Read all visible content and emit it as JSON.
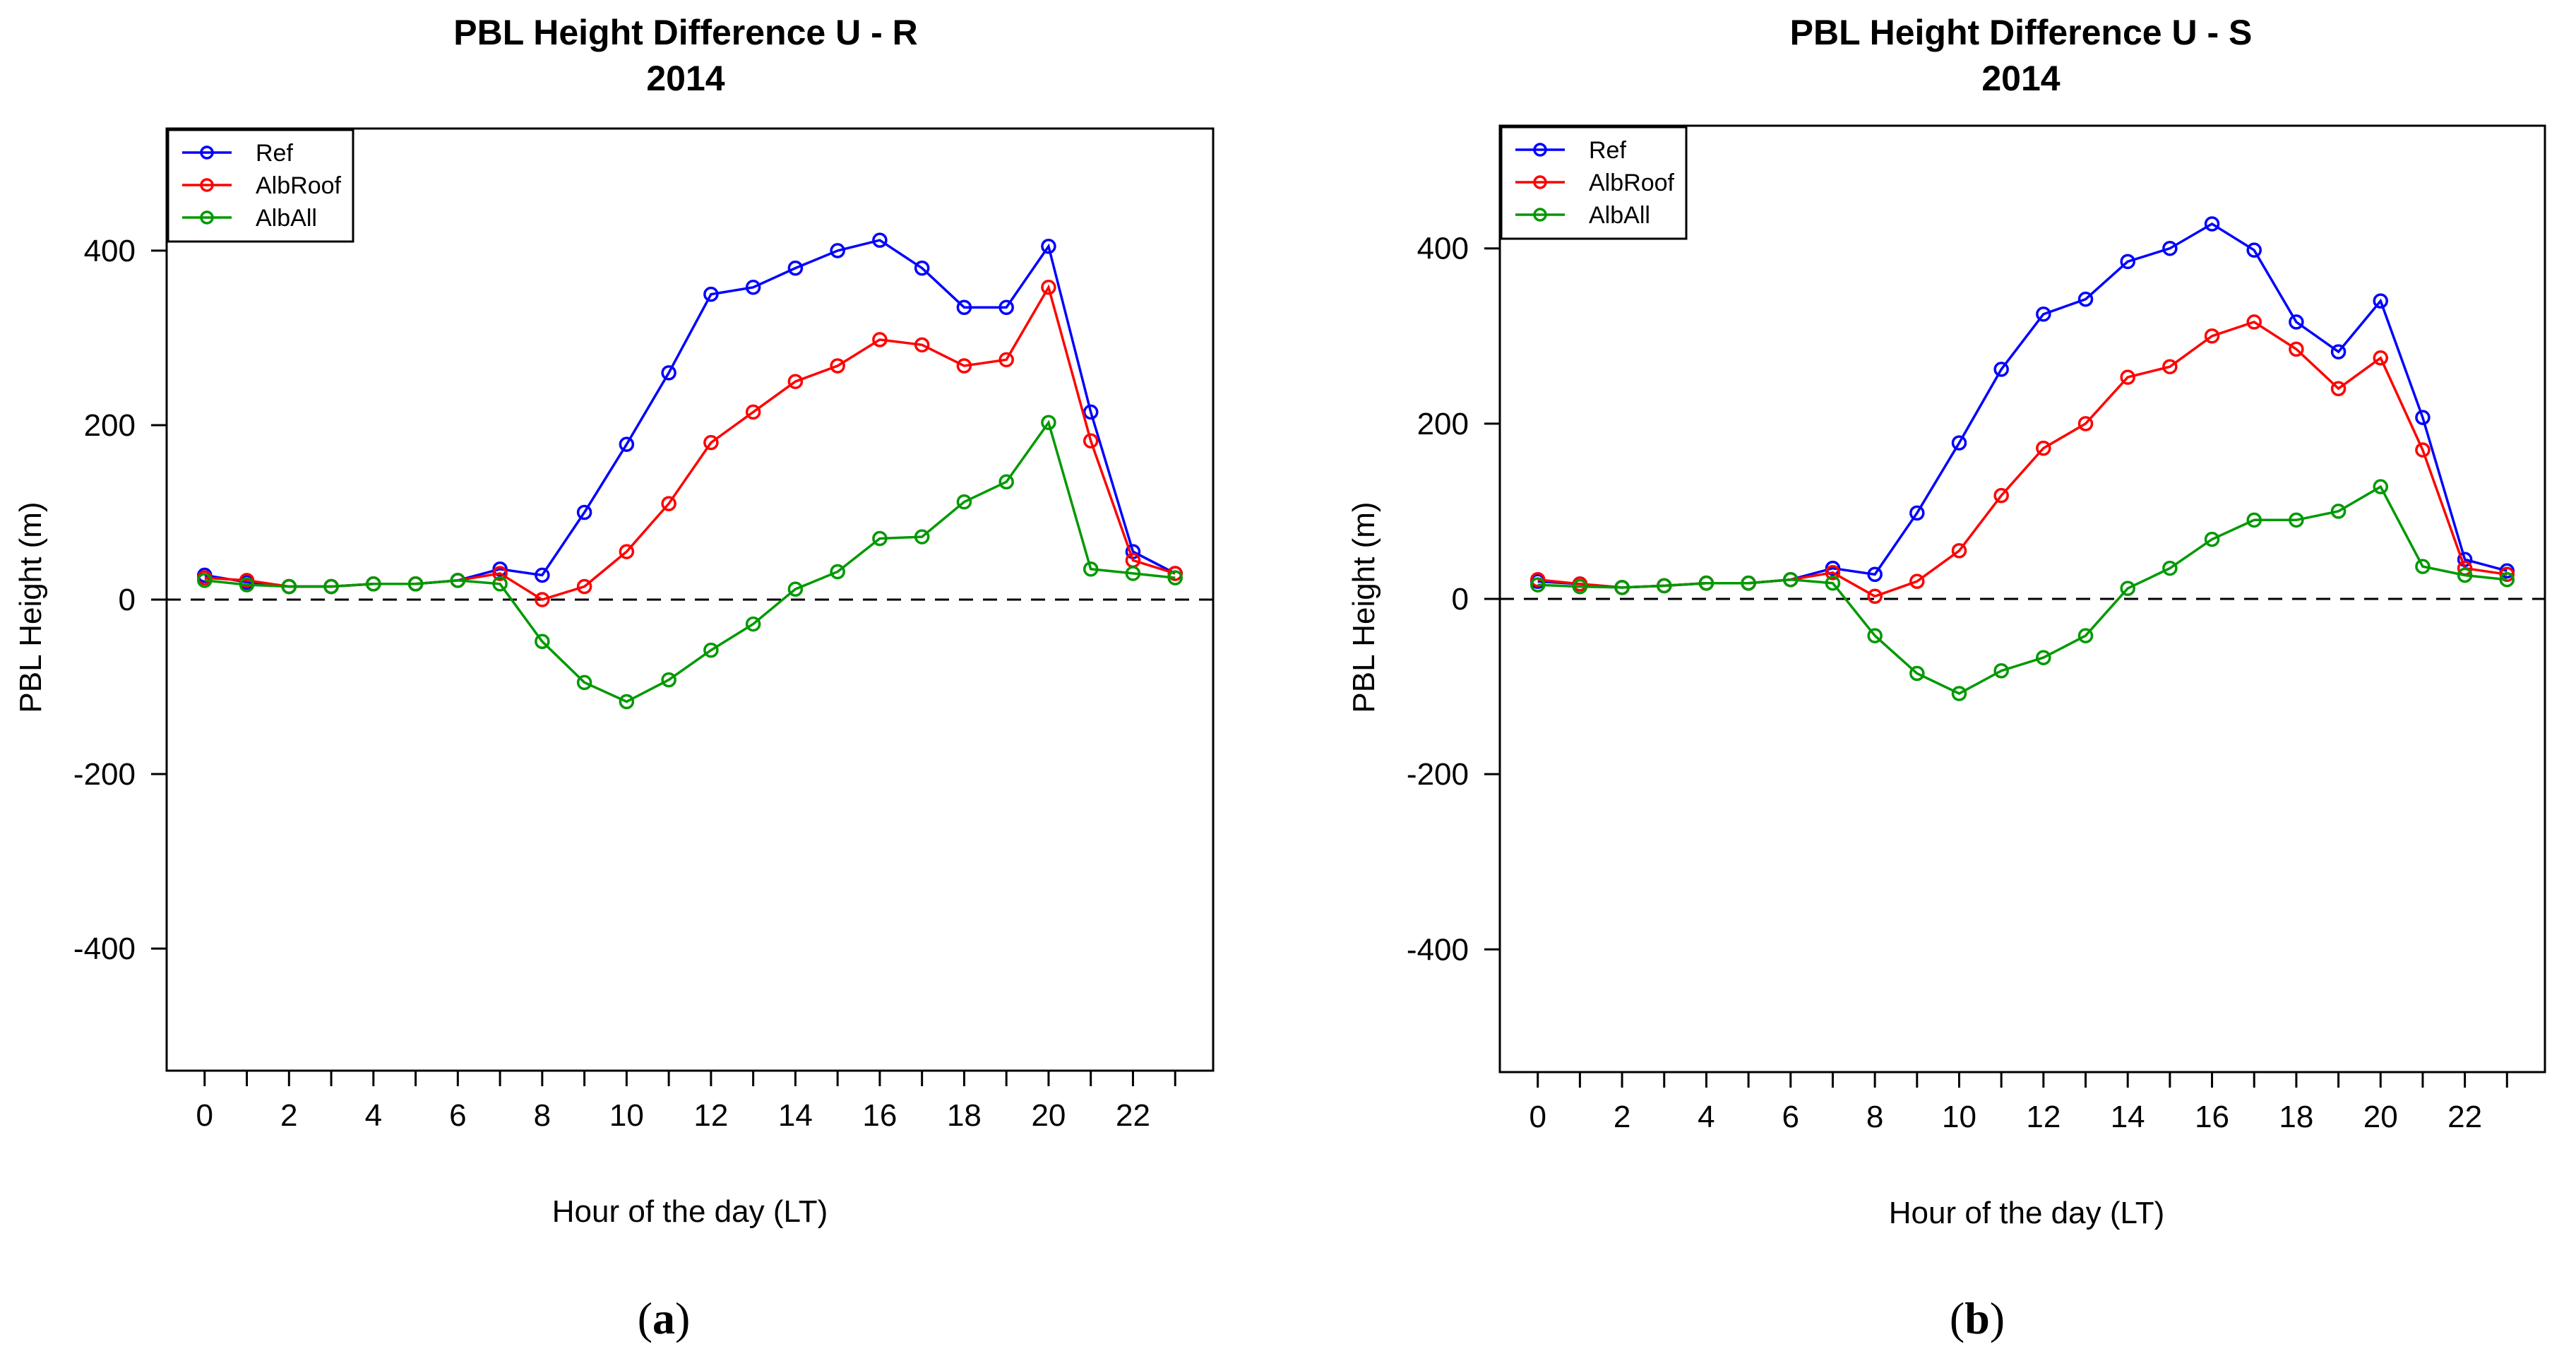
{
  "chart_data": [
    {
      "type": "line",
      "title": "PBL Height Difference U - R",
      "subtitle": "2014",
      "xlabel": "Hour of the day (LT)",
      "ylabel": "PBL Height (m)",
      "caption_paren_open": "(",
      "caption_letter": "a",
      "caption_paren_close": ")",
      "xlim": [
        -0.9,
        23.9
      ],
      "ylim": [
        -540,
        540
      ],
      "xticks": [
        0,
        1,
        2,
        3,
        4,
        5,
        6,
        7,
        8,
        9,
        10,
        11,
        12,
        13,
        14,
        15,
        16,
        17,
        18,
        19,
        20,
        21,
        22,
        23
      ],
      "xtick_labels": [
        "0",
        "2",
        "4",
        "6",
        "8",
        "10",
        "12",
        "14",
        "16",
        "18",
        "20",
        "22"
      ],
      "xtick_label_values": [
        0,
        2,
        4,
        6,
        8,
        10,
        12,
        14,
        16,
        18,
        20,
        22
      ],
      "yticks": [
        -400,
        -200,
        0,
        200,
        400
      ],
      "ytick_labels": [
        "-400",
        "-200",
        "0",
        "200",
        "400"
      ],
      "reference_line": 0,
      "legend_position": "top-left",
      "x": [
        0,
        1,
        2,
        3,
        4,
        5,
        6,
        7,
        8,
        9,
        10,
        11,
        12,
        13,
        14,
        15,
        16,
        17,
        18,
        19,
        20,
        21,
        22,
        23
      ],
      "series": [
        {
          "name": "Ref",
          "color": "#0000ff",
          "values": [
            28,
            20,
            15,
            15,
            18,
            18,
            22,
            35,
            28,
            100,
            178,
            260,
            350,
            358,
            380,
            400,
            412,
            380,
            335,
            335,
            405,
            215,
            55,
            30
          ]
        },
        {
          "name": "AlbRoof",
          "color": "#ff0000",
          "values": [
            25,
            22,
            15,
            15,
            18,
            18,
            22,
            30,
            0,
            15,
            55,
            110,
            180,
            215,
            250,
            268,
            298,
            292,
            268,
            275,
            358,
            182,
            45,
            30
          ]
        },
        {
          "name": "AlbAll",
          "color": "#009900",
          "values": [
            22,
            17,
            15,
            15,
            18,
            18,
            22,
            18,
            -48,
            -95,
            -117,
            -92,
            -58,
            -28,
            12,
            32,
            70,
            72,
            112,
            135,
            203,
            35,
            30,
            25
          ]
        }
      ]
    },
    {
      "type": "line",
      "title": "PBL Height Difference U - S",
      "subtitle": "2014",
      "xlabel": "Hour of the day (LT)",
      "ylabel": "PBL Height (m)",
      "caption_paren_open": "(",
      "caption_letter": "b",
      "caption_paren_close": ")",
      "xlim": [
        -0.9,
        23.9
      ],
      "ylim": [
        -540,
        540
      ],
      "xticks": [
        0,
        1,
        2,
        3,
        4,
        5,
        6,
        7,
        8,
        9,
        10,
        11,
        12,
        13,
        14,
        15,
        16,
        17,
        18,
        19,
        20,
        21,
        22,
        23
      ],
      "xtick_labels": [
        "0",
        "2",
        "4",
        "6",
        "8",
        "10",
        "12",
        "14",
        "16",
        "18",
        "20",
        "22"
      ],
      "xtick_label_values": [
        0,
        2,
        4,
        6,
        8,
        10,
        12,
        14,
        16,
        18,
        20,
        22
      ],
      "yticks": [
        -400,
        -200,
        0,
        200,
        400
      ],
      "ytick_labels": [
        "-400",
        "-200",
        "0",
        "200",
        "400"
      ],
      "reference_line": 0,
      "legend_position": "top-left",
      "x": [
        0,
        1,
        2,
        3,
        4,
        5,
        6,
        7,
        8,
        9,
        10,
        11,
        12,
        13,
        14,
        15,
        16,
        17,
        18,
        19,
        20,
        21,
        22,
        23
      ],
      "series": [
        {
          "name": "Ref",
          "color": "#0000ff",
          "values": [
            20,
            17,
            13,
            15,
            18,
            18,
            22,
            35,
            28,
            98,
            178,
            262,
            325,
            342,
            385,
            400,
            428,
            398,
            316,
            282,
            340,
            207,
            45,
            32
          ]
        },
        {
          "name": "AlbRoof",
          "color": "#ff0000",
          "values": [
            22,
            17,
            13,
            15,
            18,
            18,
            22,
            30,
            3,
            20,
            55,
            118,
            172,
            200,
            253,
            265,
            300,
            316,
            285,
            240,
            275,
            170,
            35,
            28
          ]
        },
        {
          "name": "AlbAll",
          "color": "#009900",
          "values": [
            16,
            14,
            13,
            15,
            18,
            18,
            22,
            18,
            -42,
            -85,
            -108,
            -82,
            -67,
            -42,
            12,
            35,
            68,
            90,
            90,
            100,
            128,
            37,
            27,
            22
          ]
        }
      ]
    }
  ]
}
